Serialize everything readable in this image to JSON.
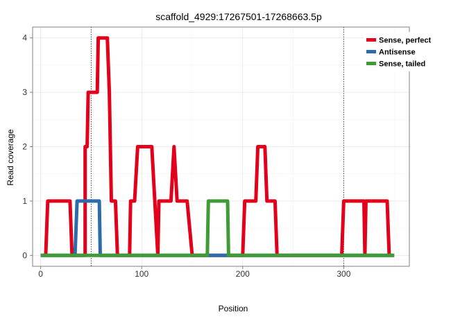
{
  "chart_data": {
    "type": "line",
    "title": "scaffold_4929:17267501-17268663.5p",
    "xlabel": "Position",
    "ylabel": "Read coverage",
    "xlim": [
      -8,
      365
    ],
    "ylim": [
      -0.2,
      4.2
    ],
    "x_ticks": [
      0,
      100,
      200,
      300
    ],
    "y_ticks": [
      0,
      1,
      2,
      3,
      4
    ],
    "grid": true,
    "vlines": [
      50,
      300
    ],
    "legend_position": "top-right",
    "series": [
      {
        "name": "Sense, perfect",
        "color": "#e3001b",
        "points": [
          [
            5,
            0
          ],
          [
            7,
            1
          ],
          [
            29,
            1
          ],
          [
            31,
            0
          ],
          [
            33,
            0
          ],
          [
            44,
            0
          ],
          [
            44,
            1
          ],
          [
            44,
            1
          ],
          [
            44,
            2
          ],
          [
            46,
            2
          ],
          [
            47,
            3
          ],
          [
            55,
            3
          ],
          [
            56,
            3
          ],
          [
            57,
            4
          ],
          [
            59,
            4
          ],
          [
            66,
            4
          ],
          [
            68,
            3
          ],
          [
            70,
            1
          ],
          [
            74,
            1
          ],
          [
            76,
            0
          ],
          [
            84,
            0
          ],
          [
            88,
            0
          ],
          [
            89,
            1
          ],
          [
            93,
            1
          ],
          [
            96,
            2
          ],
          [
            110,
            2
          ],
          [
            113,
            1
          ],
          [
            116,
            0
          ],
          [
            117,
            1
          ],
          [
            129,
            1
          ],
          [
            132,
            2
          ],
          [
            135,
            1
          ],
          [
            145,
            1
          ],
          [
            150,
            0
          ],
          [
            166,
            0
          ],
          [
            200,
            0
          ],
          [
            202,
            1
          ],
          [
            213,
            1
          ],
          [
            215,
            2
          ],
          [
            222,
            2
          ],
          [
            224,
            1
          ],
          [
            232,
            1
          ],
          [
            234,
            0
          ],
          [
            298,
            0
          ],
          [
            300,
            1
          ],
          [
            320,
            1
          ],
          [
            321,
            0
          ],
          [
            322,
            1
          ],
          [
            343,
            1
          ],
          [
            345,
            0
          ]
        ]
      },
      {
        "name": "Antisense",
        "color": "#2e6bad",
        "points": [
          [
            0,
            0
          ],
          [
            34,
            0
          ],
          [
            36,
            1
          ],
          [
            58,
            1
          ],
          [
            59,
            0
          ],
          [
            350,
            0
          ]
        ]
      },
      {
        "name": "Sense, tailed",
        "color": "#3f9b35",
        "points": [
          [
            0,
            0
          ],
          [
            165,
            0
          ],
          [
            166,
            1
          ],
          [
            185,
            1
          ],
          [
            186,
            0
          ],
          [
            350,
            0
          ]
        ]
      }
    ]
  }
}
